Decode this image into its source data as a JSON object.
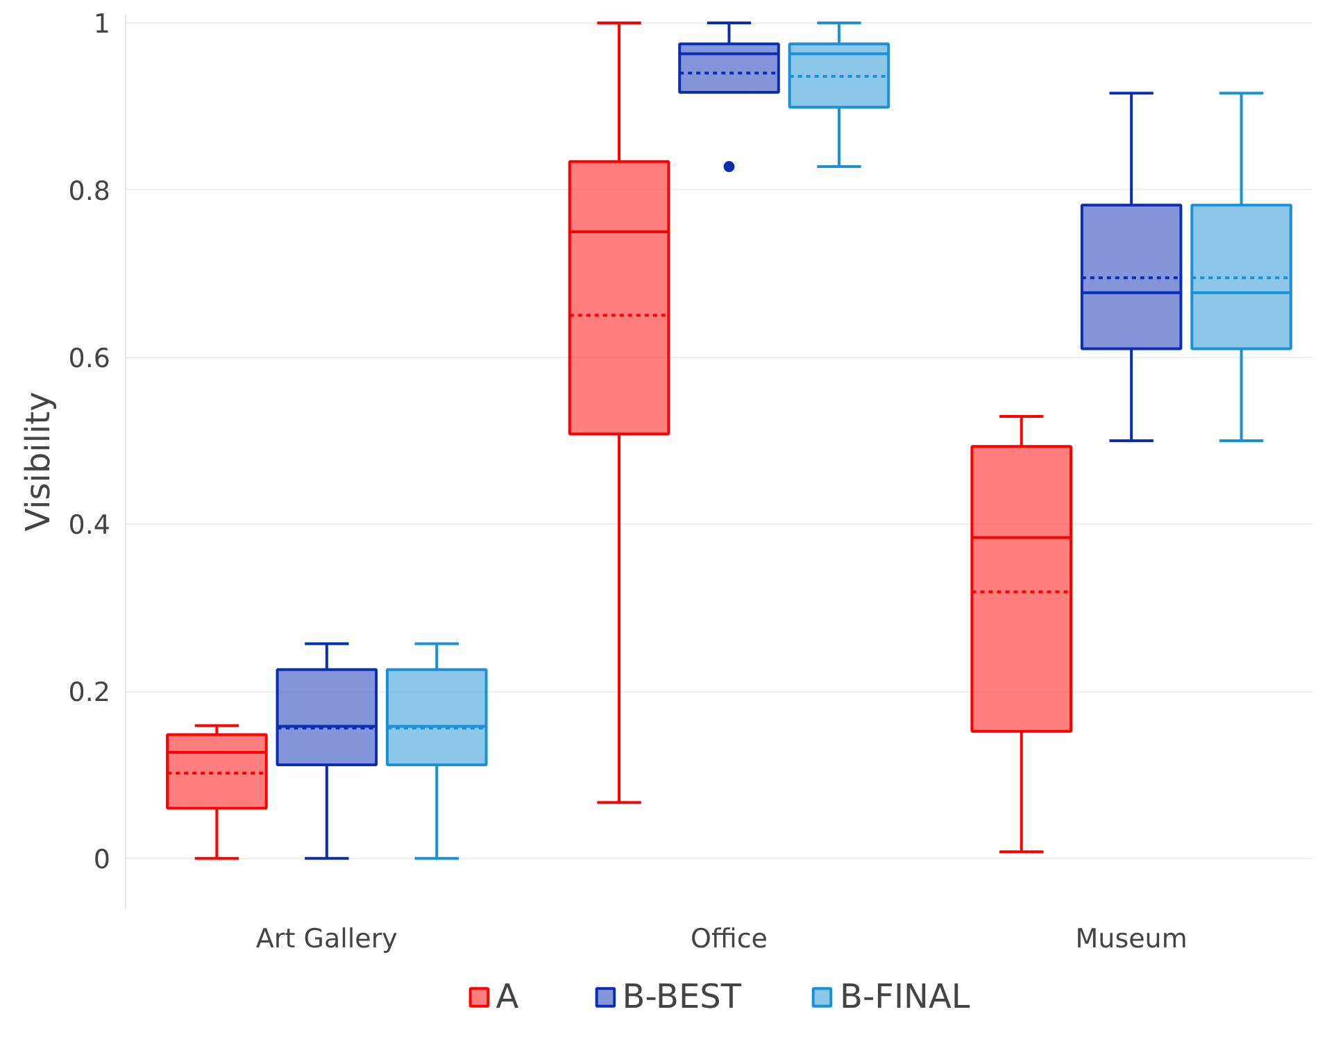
{
  "chart_data": {
    "type": "box",
    "ylabel": "Visibility",
    "categories": [
      "Art Gallery",
      "Office",
      "Museum"
    ],
    "ylim": [
      -0.06,
      1.01
    ],
    "yticks": [
      0,
      0.2,
      0.4,
      0.6,
      0.8,
      1
    ],
    "grid": "y",
    "legend": "bottom",
    "series": [
      {
        "name": "A",
        "color": "#ff0000",
        "boxes": [
          {
            "low": 0,
            "q1": 0.06,
            "median": 0.127,
            "q3": 0.148,
            "high": 0.159,
            "mean": 0.102
          },
          {
            "low": 0.067,
            "q1": 0.508,
            "median": 0.75,
            "q3": 0.834,
            "high": 1.0,
            "mean": 0.65
          },
          {
            "low": 0.008,
            "q1": 0.152,
            "median": 0.384,
            "q3": 0.493,
            "high": 0.529,
            "mean": 0.319
          }
        ]
      },
      {
        "name": "B-BEST",
        "color": "#0a2db4",
        "boxes": [
          {
            "low": 0,
            "q1": 0.112,
            "median": 0.158,
            "q3": 0.226,
            "high": 0.257,
            "mean": 0.156
          },
          {
            "low": 0.917,
            "q1": 0.917,
            "median": 0.963,
            "q3": 0.975,
            "high": 1.0,
            "mean": 0.94,
            "outliers": [
              0.828
            ]
          },
          {
            "low": 0.5,
            "q1": 0.61,
            "median": 0.677,
            "q3": 0.782,
            "high": 0.916,
            "mean": 0.695
          }
        ]
      },
      {
        "name": "B-FINAL",
        "color": "#1a90d6",
        "boxes": [
          {
            "low": 0,
            "q1": 0.112,
            "median": 0.158,
            "q3": 0.226,
            "high": 0.257,
            "mean": 0.156
          },
          {
            "low": 0.828,
            "q1": 0.899,
            "median": 0.963,
            "q3": 0.975,
            "high": 1.0,
            "mean": 0.936
          },
          {
            "low": 0.5,
            "q1": 0.61,
            "median": 0.677,
            "q3": 0.782,
            "high": 0.916,
            "mean": 0.695
          }
        ]
      }
    ]
  }
}
